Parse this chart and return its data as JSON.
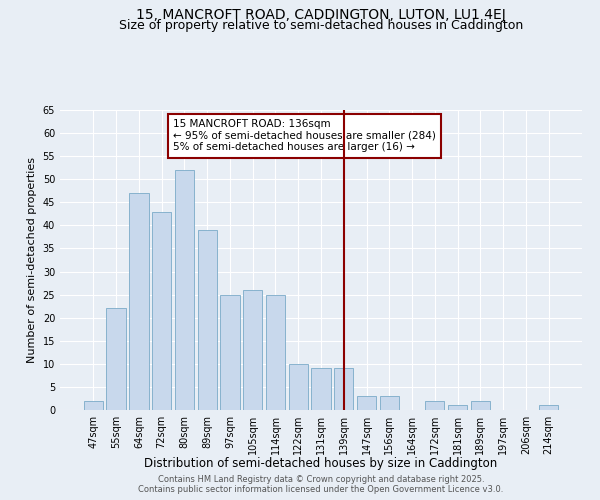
{
  "title": "15, MANCROFT ROAD, CADDINGTON, LUTON, LU1 4EJ",
  "subtitle": "Size of property relative to semi-detached houses in Caddington",
  "xlabel": "Distribution of semi-detached houses by size in Caddington",
  "ylabel": "Number of semi-detached properties",
  "categories": [
    "47sqm",
    "55sqm",
    "64sqm",
    "72sqm",
    "80sqm",
    "89sqm",
    "97sqm",
    "105sqm",
    "114sqm",
    "122sqm",
    "131sqm",
    "139sqm",
    "147sqm",
    "156sqm",
    "164sqm",
    "172sqm",
    "181sqm",
    "189sqm",
    "197sqm",
    "206sqm",
    "214sqm"
  ],
  "values": [
    2,
    22,
    47,
    43,
    52,
    39,
    25,
    26,
    25,
    10,
    9,
    9,
    3,
    3,
    0,
    2,
    1,
    2,
    0,
    0,
    1
  ],
  "bar_color": "#c8d8ec",
  "bar_edge_color": "#7aaac8",
  "vline_x_index": 11,
  "vline_color": "#8b0000",
  "annotation_text": "15 MANCROFT ROAD: 136sqm\n← 95% of semi-detached houses are smaller (284)\n5% of semi-detached houses are larger (16) →",
  "annotation_box_color": "#8b0000",
  "ylim": [
    0,
    65
  ],
  "yticks": [
    0,
    5,
    10,
    15,
    20,
    25,
    30,
    35,
    40,
    45,
    50,
    55,
    60,
    65
  ],
  "footer_line1": "Contains HM Land Registry data © Crown copyright and database right 2025.",
  "footer_line2": "Contains public sector information licensed under the Open Government Licence v3.0.",
  "bg_color": "#e8eef5",
  "plot_bg_color": "#e8eef5",
  "title_fontsize": 10,
  "subtitle_fontsize": 9,
  "tick_fontsize": 7,
  "ylabel_fontsize": 8,
  "xlabel_fontsize": 8.5,
  "footer_fontsize": 6,
  "annot_fontsize": 7.5
}
